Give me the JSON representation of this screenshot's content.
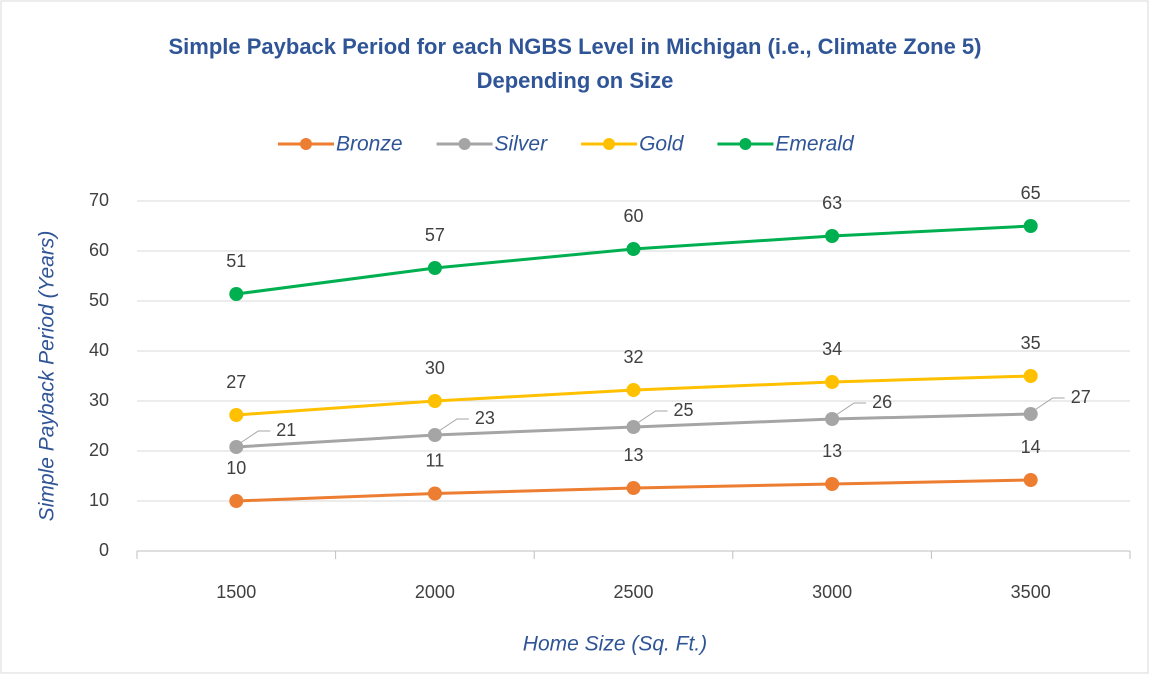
{
  "chart_data": {
    "type": "line",
    "title": "Simple Payback Period for each NGBS Level in Michigan (i.e., Climate Zone 5) Depending on Size",
    "x_label": "Home Size (Sq. Ft.)",
    "y_label": "Simple Payback Period (Years)",
    "categories": [
      1500,
      2000,
      2500,
      3000,
      3500
    ],
    "series": [
      {
        "name": "Bronze",
        "color": "#ed7d31",
        "values": [
          10.0,
          11.5,
          12.6,
          13.4,
          14.2
        ],
        "value_labels": [
          "10",
          "11",
          "13",
          "13",
          "14"
        ]
      },
      {
        "name": "Silver",
        "color": "#a5a5a5",
        "values": [
          20.8,
          23.2,
          24.8,
          26.4,
          27.4
        ],
        "value_labels": [
          "21",
          "23",
          "25",
          "26",
          "27"
        ]
      },
      {
        "name": "Gold",
        "color": "#ffc000",
        "values": [
          27.2,
          30.0,
          32.2,
          33.8,
          35.0
        ],
        "value_labels": [
          "27",
          "30",
          "32",
          "34",
          "35"
        ]
      },
      {
        "name": "Emerald",
        "color": "#00b050",
        "values": [
          51.4,
          56.6,
          60.4,
          63.0,
          65.0
        ],
        "value_labels": [
          "51",
          "57",
          "60",
          "63",
          "65"
        ]
      }
    ],
    "ylim": [
      0,
      70
    ],
    "yticks": [
      0,
      10,
      20,
      30,
      40,
      50,
      60,
      70
    ],
    "grid": true,
    "legend": "top"
  }
}
